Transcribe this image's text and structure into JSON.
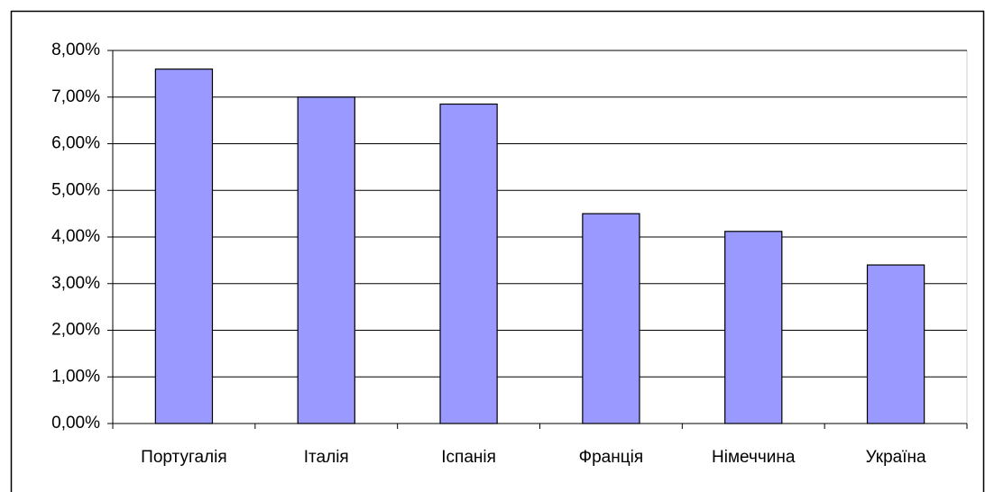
{
  "chart_data": {
    "type": "bar",
    "categories": [
      "Португалія",
      "Італія",
      "Іспанія",
      "Франція",
      "Німеччина",
      "Україна"
    ],
    "values": [
      7.6,
      7.0,
      6.85,
      4.5,
      4.12,
      3.4
    ],
    "color": "#9999ff",
    "ylim": [
      0,
      8
    ],
    "yticks": [
      {
        "value": 0,
        "label": "0,00%"
      },
      {
        "value": 1,
        "label": "1,00%"
      },
      {
        "value": 2,
        "label": "2,00%"
      },
      {
        "value": 3,
        "label": "3,00%"
      },
      {
        "value": 4,
        "label": "4,00%"
      },
      {
        "value": 5,
        "label": "5,00%"
      },
      {
        "value": 6,
        "label": "6,00%"
      },
      {
        "value": 7,
        "label": "7,00%"
      },
      {
        "value": 8,
        "label": "8,00%"
      }
    ],
    "grid": true
  }
}
